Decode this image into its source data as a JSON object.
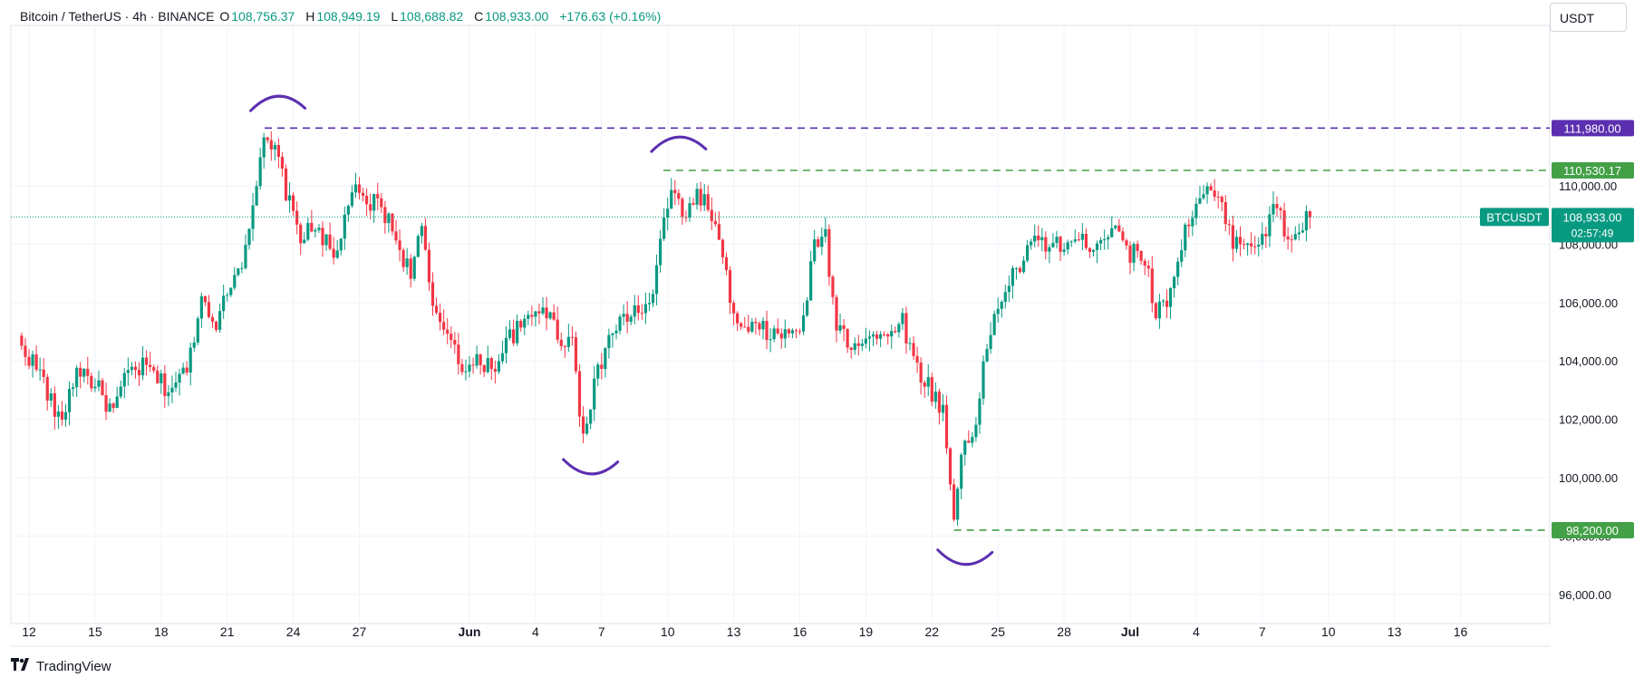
{
  "header": {
    "symbol": "Bitcoin / TetherUS · 4h · BINANCE",
    "open_label": "O",
    "open": "108,756.37",
    "high_label": "H",
    "high": "108,949.19",
    "low_label": "L",
    "low": "108,688.82",
    "close_label": "C",
    "close": "108,933.00",
    "change": "+176.63 (+0.16%)"
  },
  "currency_selector": "USDT",
  "brand": {
    "name": "TradingView"
  },
  "colors": {
    "up": "#089981",
    "down": "#f23645",
    "purple": "#5b2fb0",
    "green_line": "#43a047",
    "axis_text": "#131722",
    "grid": "#f0f3fa"
  },
  "chart_data": {
    "type": "candlestick",
    "y_range": [
      95000,
      115500
    ],
    "y_ticks": [
      {
        "value": 96000,
        "label": "96,000.00"
      },
      {
        "value": 98000,
        "label": "98,000.00"
      },
      {
        "value": 100000,
        "label": "100,000.00"
      },
      {
        "value": 102000,
        "label": "102,000.00"
      },
      {
        "value": 104000,
        "label": "104,000.00"
      },
      {
        "value": 106000,
        "label": "106,000.00"
      },
      {
        "value": 108000,
        "label": "108,000.00"
      },
      {
        "value": 110000,
        "label": "110,000.00"
      }
    ],
    "x_ticks": [
      {
        "day": 0,
        "label": "12",
        "bold": false
      },
      {
        "day": 3,
        "label": "15",
        "bold": false
      },
      {
        "day": 6,
        "label": "18",
        "bold": false
      },
      {
        "day": 9,
        "label": "21",
        "bold": false
      },
      {
        "day": 12,
        "label": "24",
        "bold": false
      },
      {
        "day": 15,
        "label": "27",
        "bold": false
      },
      {
        "day": 20,
        "label": "Jun",
        "bold": true
      },
      {
        "day": 23,
        "label": "4",
        "bold": false
      },
      {
        "day": 26,
        "label": "7",
        "bold": false
      },
      {
        "day": 29,
        "label": "10",
        "bold": false
      },
      {
        "day": 32,
        "label": "13",
        "bold": false
      },
      {
        "day": 35,
        "label": "16",
        "bold": false
      },
      {
        "day": 38,
        "label": "19",
        "bold": false
      },
      {
        "day": 41,
        "label": "22",
        "bold": false
      },
      {
        "day": 44,
        "label": "25",
        "bold": false
      },
      {
        "day": 47,
        "label": "28",
        "bold": false
      },
      {
        "day": 50,
        "label": "Jul",
        "bold": true
      },
      {
        "day": 53,
        "label": "4",
        "bold": false
      },
      {
        "day": 56,
        "label": "7",
        "bold": false
      },
      {
        "day": 59,
        "label": "10",
        "bold": false
      },
      {
        "day": 62,
        "label": "13",
        "bold": false
      },
      {
        "day": 65,
        "label": "16",
        "bold": false
      }
    ],
    "path": [
      [
        -0.5,
        104700
      ],
      [
        0.5,
        103600
      ],
      [
        1.4,
        101800
      ],
      [
        2.2,
        103800
      ],
      [
        3,
        103200
      ],
      [
        3.8,
        102200
      ],
      [
        4.5,
        103600
      ],
      [
        5.3,
        103800
      ],
      [
        6.3,
        103000
      ],
      [
        7.2,
        103700
      ],
      [
        7.8,
        106200
      ],
      [
        8.6,
        105300
      ],
      [
        9.2,
        106900
      ],
      [
        9.6,
        107200
      ],
      [
        10.2,
        109600
      ],
      [
        10.7,
        111500
      ],
      [
        11.3,
        111000
      ],
      [
        11.8,
        109400
      ],
      [
        12.4,
        108200
      ],
      [
        13.1,
        108700
      ],
      [
        13.9,
        107300
      ],
      [
        14.6,
        109900
      ],
      [
        15.3,
        109300
      ],
      [
        15.9,
        109500
      ],
      [
        16.6,
        108300
      ],
      [
        17.3,
        107000
      ],
      [
        17.8,
        108600
      ],
      [
        18.4,
        105400
      ],
      [
        19.1,
        105000
      ],
      [
        19.8,
        103600
      ],
      [
        20.5,
        104000
      ],
      [
        21.1,
        103800
      ],
      [
        21.9,
        104900
      ],
      [
        22.5,
        105200
      ],
      [
        23.3,
        106000
      ],
      [
        24.1,
        104800
      ],
      [
        24.7,
        104700
      ],
      [
        25.1,
        101500
      ],
      [
        25.6,
        102900
      ],
      [
        26.3,
        104800
      ],
      [
        27.1,
        105500
      ],
      [
        27.8,
        105800
      ],
      [
        28.3,
        105900
      ],
      [
        28.8,
        109000
      ],
      [
        29.3,
        109700
      ],
      [
        29.8,
        109000
      ],
      [
        30.4,
        109800
      ],
      [
        31.1,
        108800
      ],
      [
        31.6,
        107000
      ],
      [
        32.2,
        105000
      ],
      [
        33.1,
        105100
      ],
      [
        34.2,
        104800
      ],
      [
        35.2,
        105300
      ],
      [
        35.6,
        107800
      ],
      [
        36.1,
        108600
      ],
      [
        36.6,
        105400
      ],
      [
        37.3,
        104600
      ],
      [
        38.2,
        104900
      ],
      [
        38.9,
        104700
      ],
      [
        39.6,
        105600
      ],
      [
        40.2,
        103900
      ],
      [
        40.8,
        103200
      ],
      [
        41.5,
        102300
      ],
      [
        42,
        98500
      ],
      [
        42.4,
        101300
      ],
      [
        43,
        101700
      ],
      [
        43.5,
        104600
      ],
      [
        44.2,
        106300
      ],
      [
        45,
        107300
      ],
      [
        45.8,
        108200
      ],
      [
        46.6,
        107900
      ],
      [
        47.3,
        108100
      ],
      [
        48.1,
        108000
      ],
      [
        48.9,
        108300
      ],
      [
        49.4,
        108900
      ],
      [
        49.9,
        107600
      ],
      [
        50.6,
        107800
      ],
      [
        51.2,
        105500
      ],
      [
        51.8,
        106400
      ],
      [
        52.4,
        108200
      ],
      [
        52.9,
        109300
      ],
      [
        53.4,
        109800
      ],
      [
        54,
        109500
      ],
      [
        54.6,
        108200
      ],
      [
        55.2,
        108100
      ],
      [
        55.7,
        108100
      ],
      [
        56.2,
        108400
      ],
      [
        56.6,
        109400
      ],
      [
        57.1,
        108300
      ],
      [
        57.4,
        108000
      ],
      [
        57.7,
        108600
      ],
      [
        58.1,
        108900
      ]
    ],
    "levels": [
      {
        "price": 111980,
        "label": "111,980.00",
        "color": "#5b2fb0",
        "start_day": 10.7
      },
      {
        "price": 110530.17,
        "label": "110,530.17",
        "color": "#43a047",
        "start_day": 28.8
      },
      {
        "price": 98200,
        "label": "98,200.00",
        "color": "#43a047",
        "start_day": 42
      }
    ],
    "current_price": {
      "price": 108933,
      "label": "108,933.00",
      "countdown": "02:57:49",
      "symbol": "BTCUSDT"
    },
    "arcs": [
      {
        "type": "top",
        "day": 11.3,
        "price": 112800
      },
      {
        "type": "top",
        "day": 29.5,
        "price": 111400
      },
      {
        "type": "bottom",
        "day": 25.5,
        "price": 100400
      },
      {
        "type": "bottom",
        "day": 42.5,
        "price": 97300
      }
    ]
  }
}
